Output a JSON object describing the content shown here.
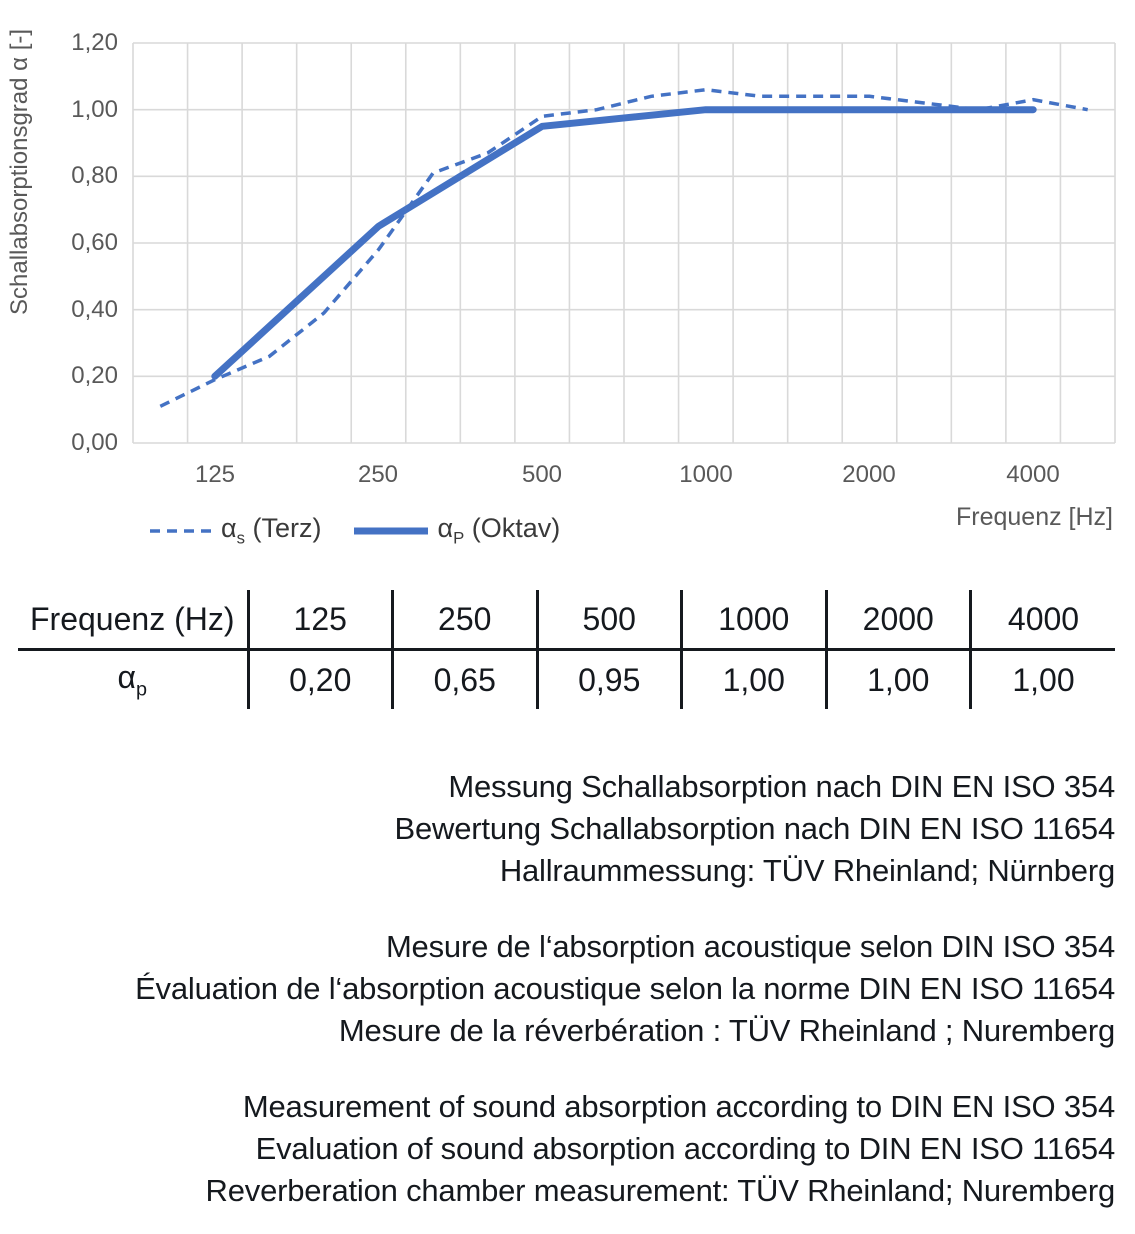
{
  "chart": {
    "y_axis_title": "Schallabsorptionsgrad α [-]",
    "x_axis_title": "Frequenz [Hz]",
    "y_ticks": [
      "1,20",
      "1,00",
      "0,80",
      "0,60",
      "0,40",
      "0,20",
      "0,00"
    ],
    "x_ticks": [
      "125",
      "250",
      "500",
      "1000",
      "2000",
      "4000"
    ],
    "line_color": "#4472C4",
    "grid_color": "#D9D9D9",
    "axis_text_color": "#595959",
    "legend": [
      {
        "symbol": "α",
        "sub": "s",
        "rest": " (Terz)",
        "style": "dashed"
      },
      {
        "symbol": "α",
        "sub": "P",
        "rest": " (Oktav)",
        "style": "solid"
      }
    ]
  },
  "chart_data": {
    "type": "line",
    "title": "",
    "xlabel": "Frequenz [Hz]",
    "ylabel": "Schallabsorptionsgrad α [-]",
    "ylim": [
      0,
      1.2
    ],
    "y_gridlines_step": 0.2,
    "grid": true,
    "legend_position": "bottom-left",
    "x_categories": [
      "100",
      "125",
      "160",
      "200",
      "250",
      "315",
      "400",
      "500",
      "630",
      "800",
      "1000",
      "1250",
      "1600",
      "2000",
      "2500",
      "3150",
      "4000",
      "5000"
    ],
    "series": [
      {
        "name": "αs (Terz)",
        "style": "dashed",
        "values": [
          0.11,
          0.19,
          0.26,
          0.39,
          0.58,
          0.81,
          0.87,
          0.98,
          1.0,
          1.04,
          1.06,
          1.04,
          1.04,
          1.04,
          1.02,
          1.0,
          1.03,
          1.0
        ]
      },
      {
        "name": "αP (Oktav)",
        "style": "solid",
        "x": [
          "125",
          "250",
          "500",
          "1000",
          "2000",
          "4000"
        ],
        "values": [
          0.2,
          0.65,
          0.95,
          1.0,
          1.0,
          1.0
        ]
      }
    ]
  },
  "table": {
    "header_label": "Frequenz (Hz)",
    "header_values": [
      "125",
      "250",
      "500",
      "1000",
      "2000",
      "4000"
    ],
    "row_symbol": "α",
    "row_subscript": "p",
    "row_values": [
      "0,20",
      "0,65",
      "0,95",
      "1,00",
      "1,00",
      "1,00"
    ]
  },
  "notes": {
    "german": [
      "Messung Schallabsorption nach DIN EN ISO 354",
      "Bewertung Schallabsorption nach DIN EN ISO 11654",
      "Hallraummessung: TÜV Rheinland; Nürnberg"
    ],
    "french": [
      "Mesure de l‘absorption acoustique selon DIN ISO 354",
      "Évaluation de l‘absorption acoustique selon la norme DIN EN ISO 11654",
      "Mesure de la réverbération : TÜV Rheinland ; Nuremberg"
    ],
    "english": [
      "Measurement of sound absorption according to DIN EN ISO 354",
      "Evaluation of sound absorption according to DIN EN ISO 11654",
      "Reverberation chamber measurement: TÜV Rheinland; Nuremberg"
    ]
  }
}
